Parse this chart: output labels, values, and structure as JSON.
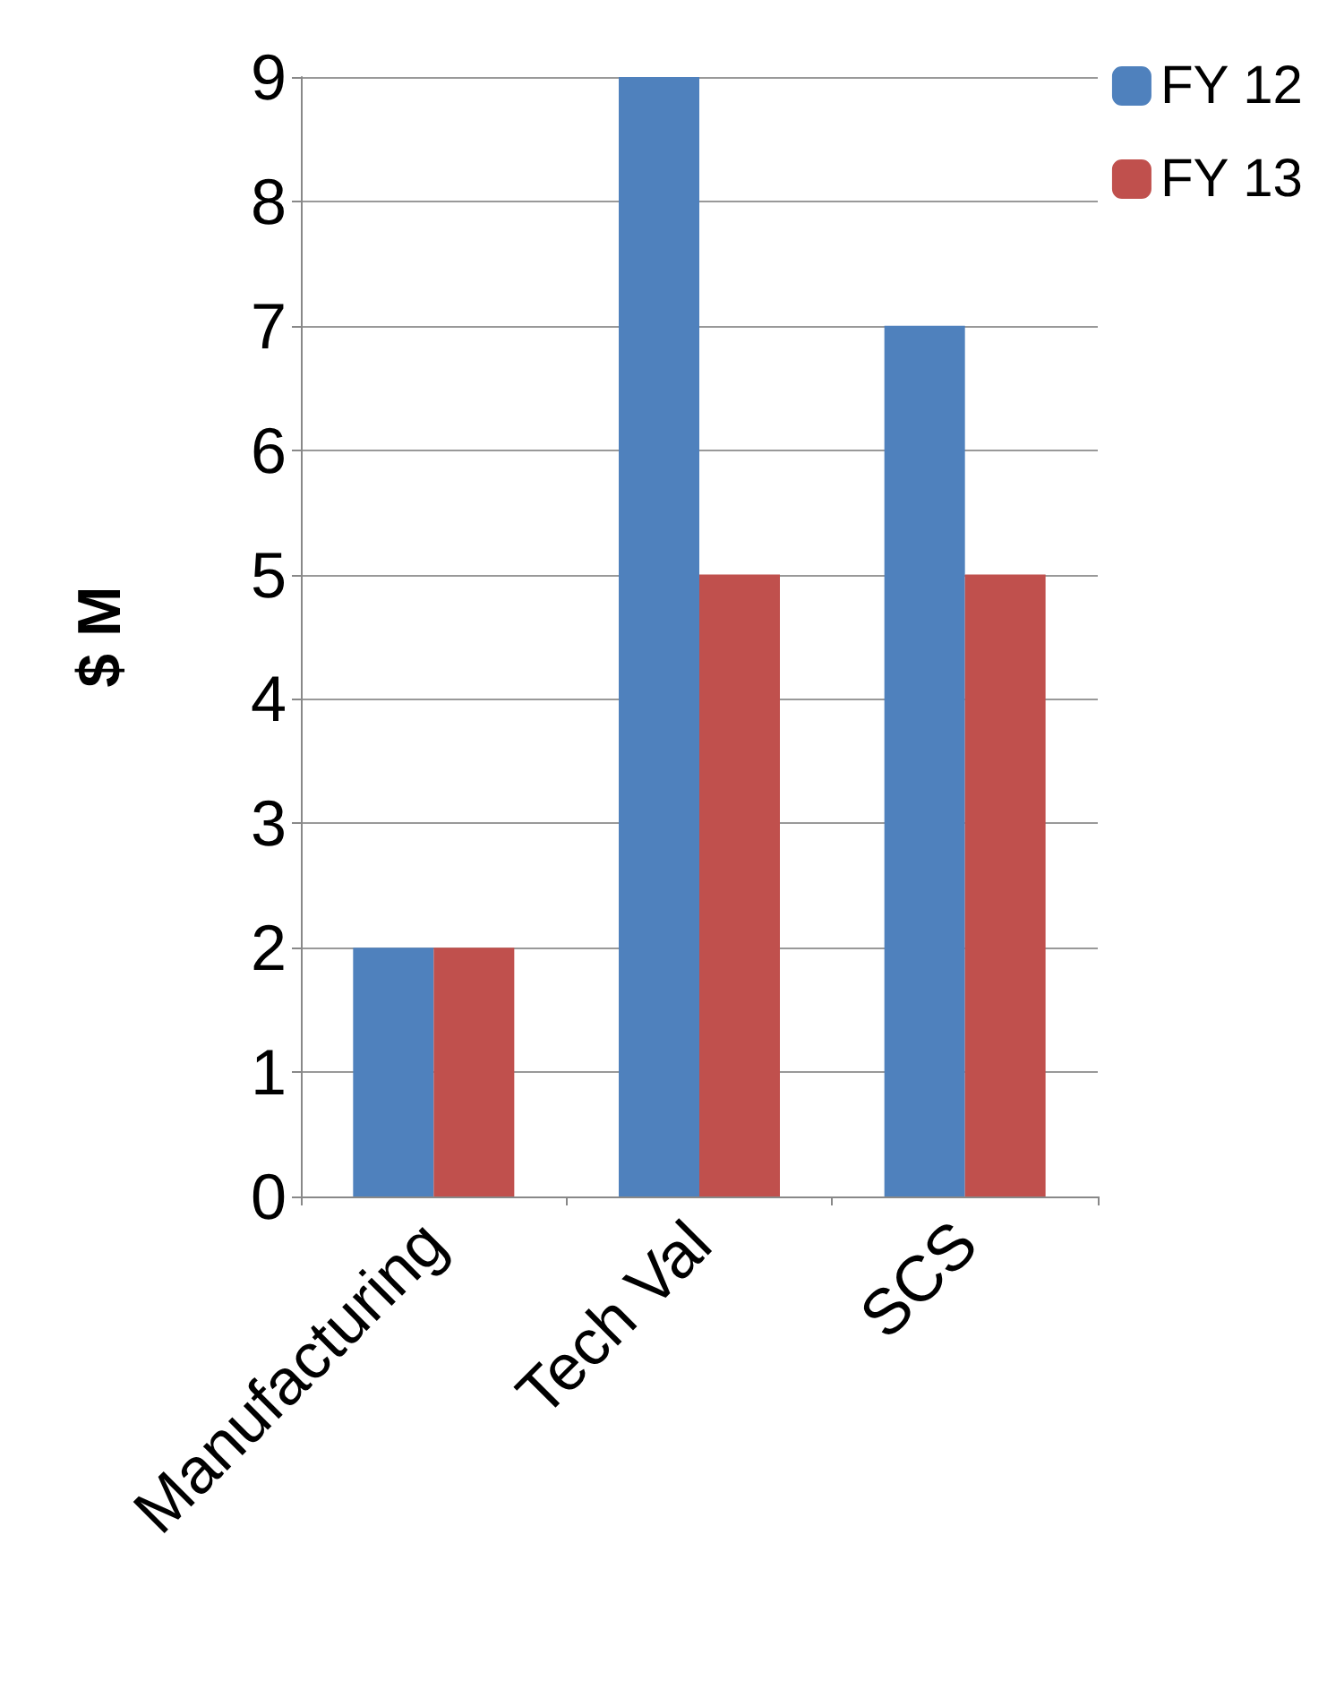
{
  "chart_data": {
    "type": "bar",
    "ylabel": "$ M",
    "categories": [
      "Manufacturing",
      "Tech Val",
      "SCS"
    ],
    "series": [
      {
        "name": "FY 12",
        "color": "#4f81bd",
        "values": [
          2,
          9,
          7
        ]
      },
      {
        "name": "FY 13",
        "color": "#c0504d",
        "values": [
          2,
          5,
          5
        ]
      }
    ],
    "ylim": [
      0,
      9
    ],
    "yticks": [
      0,
      1,
      2,
      3,
      4,
      5,
      6,
      7,
      8,
      9
    ],
    "grid": "y",
    "legend": "top right"
  }
}
